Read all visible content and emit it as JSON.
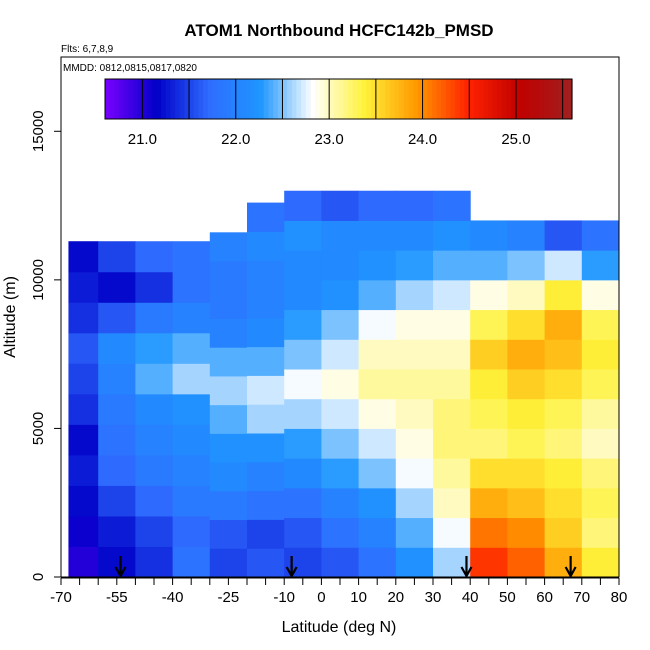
{
  "chart_data": {
    "type": "heatmap",
    "title": "ATOM1 Northbound HCFC142b_PMSD",
    "flights_label": "Flts: 6,7,8,9",
    "dates_label": "MMDD: 0812,0815,0817,0820",
    "xlabel": "Latitude (deg N)",
    "ylabel": "Altitude (m)",
    "xlim": [
      -70,
      80
    ],
    "ylim": [
      0,
      17500
    ],
    "x_ticks": [
      "-70",
      "-55",
      "-40",
      "-25",
      "-10",
      "0",
      "10",
      "20",
      "30",
      "40",
      "50",
      "60",
      "70",
      "80"
    ],
    "x_tick_values": [
      -70,
      -55,
      -40,
      -25,
      -10,
      0,
      10,
      20,
      30,
      40,
      50,
      60,
      70,
      80
    ],
    "x_minor_ticks": [
      -65,
      -60,
      -50,
      -45,
      -35,
      -30,
      -20,
      -15,
      -5,
      5,
      15,
      25,
      35,
      45,
      55,
      65,
      75
    ],
    "y_ticks": [
      "0",
      "5000",
      "10000",
      "15000"
    ],
    "y_tick_values": [
      0,
      5000,
      10000,
      15000
    ],
    "grid": false,
    "colorbar": {
      "placement": "top-inside",
      "range": [
        20.6,
        25.6
      ],
      "tick_labels": [
        "21.0",
        "22.0",
        "23.0",
        "24.0",
        "25.0"
      ],
      "tick_values": [
        21.0,
        22.0,
        23.0,
        24.0,
        25.0
      ],
      "colors": [
        "#7a00ff",
        "#0000c8",
        "#2f6cff",
        "#1e96ff",
        "#ffffff",
        "#fff23a",
        "#ff9900",
        "#ff2200",
        "#c00000",
        "#a02020"
      ]
    },
    "arrows_at_latitude": [
      -54,
      -8,
      39,
      67
    ],
    "profile_columns": [
      {
        "lat_start": -68,
        "lat_end": -60,
        "top_alt": 11300,
        "values_low_to_high": [
          21.0,
          21.1,
          21.2,
          21.3,
          21.2,
          21.4,
          21.5,
          21.6,
          21.4,
          21.3,
          21.2
        ]
      },
      {
        "lat_start": -60,
        "lat_end": -50,
        "top_alt": 11300,
        "values_low_to_high": [
          21.2,
          21.3,
          21.5,
          21.7,
          21.8,
          21.9,
          22.0,
          22.1,
          21.6,
          21.2,
          21.5
        ]
      },
      {
        "lat_start": -50,
        "lat_end": -40,
        "top_alt": 11300,
        "values_low_to_high": [
          21.4,
          21.5,
          21.7,
          21.9,
          22.0,
          22.1,
          22.4,
          22.3,
          21.9,
          21.4,
          21.7
        ]
      },
      {
        "lat_start": -40,
        "lat_end": -30,
        "top_alt": 11300,
        "values_low_to_high": [
          21.8,
          21.7,
          21.9,
          22.0,
          22.1,
          22.2,
          22.6,
          22.4,
          22.0,
          21.8,
          21.8
        ]
      },
      {
        "lat_start": -30,
        "lat_end": -20,
        "top_alt": 11600,
        "values_low_to_high": [
          21.5,
          21.6,
          21.9,
          22.1,
          22.2,
          22.4,
          22.6,
          22.4,
          22.0,
          21.9,
          21.9,
          22.0
        ]
      },
      {
        "lat_start": -20,
        "lat_end": -10,
        "top_alt": 12600,
        "values_low_to_high": [
          21.6,
          21.5,
          21.8,
          22.0,
          22.2,
          22.6,
          22.7,
          22.4,
          22.1,
          22.0,
          22.0,
          22.1,
          21.8
        ]
      },
      {
        "lat_start": -10,
        "lat_end": 0,
        "top_alt": 13000,
        "values_low_to_high": [
          21.5,
          21.6,
          21.8,
          22.1,
          22.3,
          22.6,
          22.8,
          22.5,
          22.3,
          22.1,
          22.1,
          22.2,
          21.7
        ]
      },
      {
        "lat_start": 0,
        "lat_end": 10,
        "top_alt": 13000,
        "values_low_to_high": [
          21.6,
          21.8,
          22.0,
          22.3,
          22.5,
          22.7,
          22.9,
          22.7,
          22.5,
          22.2,
          22.1,
          22.1,
          21.6
        ]
      },
      {
        "lat_start": 10,
        "lat_end": 20,
        "top_alt": 13000,
        "values_low_to_high": [
          21.8,
          22.0,
          22.2,
          22.5,
          22.7,
          22.9,
          23.1,
          23.0,
          22.8,
          22.4,
          22.2,
          22.1,
          21.7
        ]
      },
      {
        "lat_start": 20,
        "lat_end": 30,
        "top_alt": 13000,
        "values_low_to_high": [
          22.2,
          22.4,
          22.6,
          22.8,
          22.9,
          23.0,
          23.1,
          23.0,
          22.9,
          22.6,
          22.3,
          22.1,
          21.7
        ]
      },
      {
        "lat_start": 30,
        "lat_end": 40,
        "top_alt": 13000,
        "values_low_to_high": [
          22.6,
          22.8,
          23.0,
          23.1,
          23.2,
          23.2,
          23.1,
          23.0,
          22.9,
          22.7,
          22.4,
          22.2,
          21.8
        ]
      },
      {
        "lat_start": 40,
        "lat_end": 50,
        "top_alt": 12000,
        "values_low_to_high": [
          24.4,
          24.1,
          23.8,
          23.5,
          23.2,
          23.3,
          23.4,
          23.6,
          23.3,
          22.9,
          22.4,
          22.1
        ]
      },
      {
        "lat_start": 50,
        "lat_end": 60,
        "top_alt": 12000,
        "values_low_to_high": [
          24.2,
          24.0,
          23.7,
          23.5,
          23.3,
          23.4,
          23.6,
          23.8,
          23.5,
          23.0,
          22.5,
          22.0
        ]
      },
      {
        "lat_start": 60,
        "lat_end": 70,
        "top_alt": 12000,
        "values_low_to_high": [
          23.8,
          23.6,
          23.5,
          23.4,
          23.2,
          23.3,
          23.5,
          23.7,
          23.8,
          23.4,
          22.7,
          21.6
        ]
      },
      {
        "lat_start": 70,
        "lat_end": 80,
        "top_alt": 12000,
        "values_low_to_high": [
          23.4,
          23.2,
          23.3,
          23.2,
          23.0,
          23.1,
          23.3,
          23.4,
          23.3,
          22.9,
          22.3,
          21.8
        ]
      }
    ]
  }
}
